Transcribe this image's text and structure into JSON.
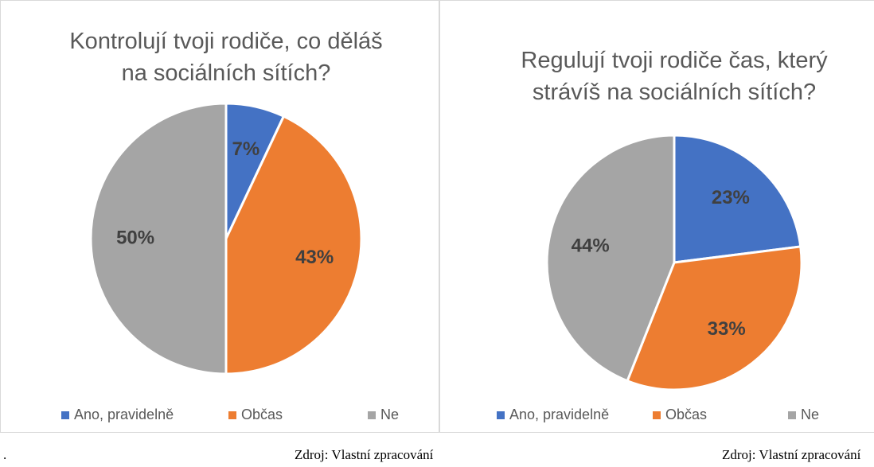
{
  "chart_data": [
    {
      "type": "pie",
      "title": "Kontrolují tvoji rodiče, co děláš na sociálních sítích?",
      "categories": [
        "Ano, pravidelně",
        "Občas",
        "Ne"
      ],
      "values": [
        7,
        43,
        50
      ],
      "value_labels": [
        "7%",
        "43%",
        "50%"
      ],
      "colors": [
        "#4472c4",
        "#ed7d31",
        "#a5a5a5"
      ],
      "legend": "bottom"
    },
    {
      "type": "pie",
      "title": "Regulují tvoji rodiče čas, který strávíš na sociálních sítích?",
      "categories": [
        "Ano, pravidelně",
        "Občas",
        "Ne"
      ],
      "values": [
        23,
        33,
        44
      ],
      "value_labels": [
        "23%",
        "33%",
        "44%"
      ],
      "colors": [
        "#4472c4",
        "#ed7d31",
        "#a5a5a5"
      ],
      "legend": "bottom"
    }
  ],
  "captions": [
    ".",
    "Zdroj: Vlastní zpracování",
    "Zdroj: Vlastní zpracování"
  ]
}
